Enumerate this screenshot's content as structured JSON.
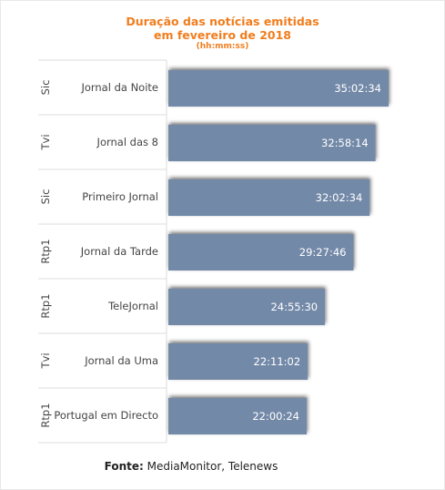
{
  "title": {
    "line1": "Duração das notícias emitidas",
    "line2": "em fevereiro de 2018",
    "unit": "(hh:mm:ss)"
  },
  "source": {
    "prefix": "Fonte:",
    "text": "MediaMonitor, Telenews"
  },
  "colors": {
    "title": "#f07d1e",
    "bar": "#7389a8",
    "bar_shadow": "#3a3a3a",
    "divider": "#dcdcdc"
  },
  "chart_data": {
    "type": "bar",
    "orientation": "horizontal",
    "grid": false,
    "legend": "none",
    "value_unit": "hh:mm:ss",
    "xlim_seconds": [
      0,
      126154
    ],
    "rows": [
      {
        "group": "Sic",
        "category": "Jornal da Noite",
        "label": "35:02:34",
        "seconds": 126154
      },
      {
        "group": "Tvi",
        "category": "Jornal das 8",
        "label": "32:58:14",
        "seconds": 118694
      },
      {
        "group": "Sic",
        "category": "Primeiro Jornal",
        "label": "32:02:34",
        "seconds": 115354
      },
      {
        "group": "Rtp1",
        "category": "Jornal da Tarde",
        "label": "29:27:46",
        "seconds": 106066
      },
      {
        "group": "Rtp1",
        "category": "TeleJornal",
        "label": "24:55:30",
        "seconds": 89730
      },
      {
        "group": "Tvi",
        "category": "Jornal da Uma",
        "label": "22:11:02",
        "seconds": 79862
      },
      {
        "group": "Rtp1",
        "category": "Portugal em Directo",
        "label": "22:00:24",
        "seconds": 79224
      }
    ]
  }
}
